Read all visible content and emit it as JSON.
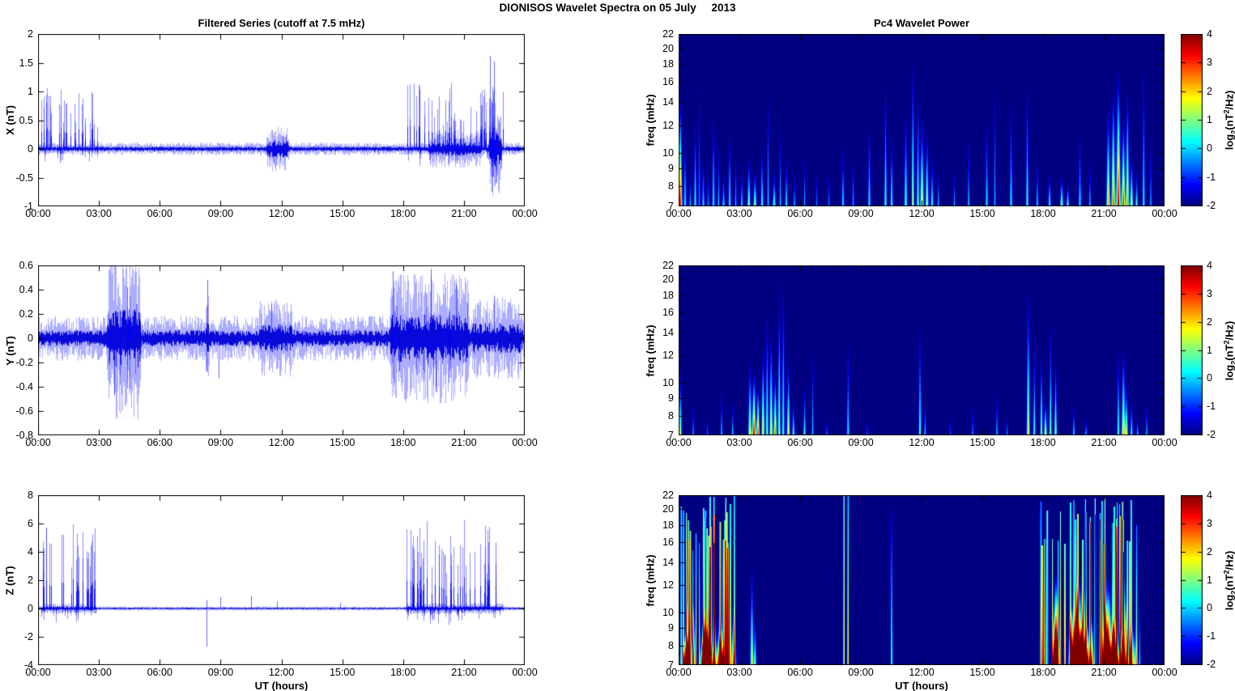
{
  "header": {
    "title": "DIONISOS Wavelet Spectra on 05 July     2013"
  },
  "axes": {
    "x_label": "UT (hours)",
    "x_tick_hours": [
      0,
      3,
      6,
      9,
      12,
      15,
      18,
      21,
      24
    ],
    "x_tick_labels": [
      "00:00",
      "03:00",
      "06:00",
      "09:00",
      "12:00",
      "15:00",
      "18:00",
      "21:00",
      "00:00"
    ]
  },
  "colorbar": {
    "range": [
      -2,
      4
    ],
    "tick_values": [
      4,
      3,
      2,
      1,
      0,
      -1,
      -2
    ],
    "tick_labels": [
      "4",
      "3",
      "2",
      "1",
      "0",
      "-1",
      "-2"
    ],
    "label_parts": {
      "prefix": "log",
      "sub": "2",
      "mid": "(nT",
      "sup": "2",
      "suffix": "/Hz)"
    },
    "colormap": "jet"
  },
  "chart_data": [
    {
      "id": "x-series",
      "panel": "x-series",
      "type": "line",
      "title": "Filtered Series (cutoff at 7.5 mHz)",
      "ylabel": "X (nT)",
      "ylim": [
        -1,
        2
      ],
      "ytick_values": [
        2,
        1.5,
        1,
        0.5,
        0,
        -0.5,
        -1
      ],
      "ytick_labels": [
        "2",
        "1.5",
        "1",
        "0.5",
        "0",
        "-0.5",
        "-1"
      ],
      "line_color": "#0000ff",
      "signal": {
        "seed": 11,
        "noise": 0.05,
        "bursts": [
          {
            "t0": 11.2,
            "t1": 12.4,
            "amp": 0.13
          },
          {
            "t0": 19.2,
            "t1": 21.9,
            "amp": 0.1
          },
          {
            "t0": 22.15,
            "t1": 22.9,
            "amp": 0.35
          }
        ],
        "spike_trains": [
          {
            "t0": 0.1,
            "t1": 2.95,
            "rate": 11,
            "amp": [
              0.35,
              1.08
            ],
            "sign": 1
          },
          {
            "t0": 0.1,
            "t1": 2.95,
            "rate": 4,
            "amp": [
              0.1,
              0.25
            ],
            "sign": -1
          },
          {
            "t0": 11.3,
            "t1": 12.3,
            "rate": 6,
            "amp": [
              0.15,
              0.35
            ],
            "sign": 0
          },
          {
            "t0": 18.1,
            "t1": 23.0,
            "rate": 10,
            "amp": [
              0.4,
              1.15
            ],
            "sign": 1
          },
          {
            "t0": 18.1,
            "t1": 23.0,
            "rate": 4,
            "amp": [
              0.1,
              0.3
            ],
            "sign": -1
          },
          {
            "t0": 22.2,
            "t1": 22.9,
            "rate": 9,
            "amp": [
              0.3,
              0.72
            ],
            "sign": -1
          }
        ],
        "events": [
          {
            "t": 22.28,
            "a": 1.62
          },
          {
            "t": 22.47,
            "a": 1.52
          },
          {
            "t": 22.38,
            "a": -0.75
          }
        ]
      }
    },
    {
      "id": "y-series",
      "panel": "y-series",
      "type": "line",
      "title": "",
      "ylabel": "Y (nT)",
      "ylim": [
        -0.8,
        0.6
      ],
      "ytick_values": [
        0.6,
        0.4,
        0.2,
        0,
        -0.2,
        -0.4,
        -0.6,
        -0.8
      ],
      "ytick_labels": [
        "0.6",
        "0.4",
        "0.2",
        "0",
        "-0.2",
        "-0.4",
        "-0.6",
        "-0.8"
      ],
      "line_color": "#0000ff",
      "signal": {
        "seed": 22,
        "noise": 0.085,
        "bursts": [
          {
            "t0": 3.35,
            "t1": 5.1,
            "amp": 0.22
          },
          {
            "t0": 8.2,
            "t1": 8.5,
            "amp": 0.1
          },
          {
            "t0": 10.8,
            "t1": 12.6,
            "amp": 0.06
          },
          {
            "t0": 17.3,
            "t1": 21.3,
            "amp": 0.16
          },
          {
            "t0": 21.3,
            "t1": 23.9,
            "amp": 0.07
          }
        ],
        "spike_trains": [
          {
            "t0": 3.4,
            "t1": 5.0,
            "rate": 12,
            "amp": [
              0.15,
              0.42
            ],
            "sign": 0
          },
          {
            "t0": 17.4,
            "t1": 21.2,
            "rate": 8,
            "amp": [
              0.15,
              0.4
            ],
            "sign": 0
          }
        ],
        "events": [
          {
            "t": 3.75,
            "a": -0.47
          },
          {
            "t": 4.4,
            "a": 0.42
          },
          {
            "t": 8.35,
            "a": 0.48
          },
          {
            "t": 8.3,
            "a": -0.28
          },
          {
            "t": 8.9,
            "a": -0.33
          },
          {
            "t": 11.5,
            "a": 0.28
          },
          {
            "t": 17.5,
            "a": 0.55
          },
          {
            "t": 19.35,
            "a": 0.57
          },
          {
            "t": 19.6,
            "a": -0.44
          },
          {
            "t": 20.6,
            "a": 0.45
          },
          {
            "t": 22.5,
            "a": 0.35
          }
        ]
      }
    },
    {
      "id": "z-series",
      "panel": "z-series",
      "type": "line",
      "title": "",
      "ylabel": "Z (nT)",
      "ylim": [
        -4,
        8
      ],
      "ytick_values": [
        8,
        6,
        4,
        2,
        0,
        -2,
        -4
      ],
      "ytick_labels": [
        "8",
        "6",
        "4",
        "2",
        "0",
        "-2",
        "-4"
      ],
      "line_color": "#0000ff",
      "signal": {
        "seed": 33,
        "noise": 0.07,
        "bursts": [
          {
            "t0": 0.1,
            "t1": 2.9,
            "amp": 0.1
          },
          {
            "t0": 18.05,
            "t1": 23.0,
            "amp": 0.12
          }
        ],
        "spike_trains": [
          {
            "t0": 0.12,
            "t1": 2.85,
            "rate": 10,
            "amp": [
              2.5,
              6.1
            ],
            "sign": 1
          },
          {
            "t0": 0.12,
            "t1": 2.85,
            "rate": 6,
            "amp": [
              0.3,
              1.0
            ],
            "sign": -1
          },
          {
            "t0": 18.1,
            "t1": 22.95,
            "rate": 10,
            "amp": [
              2.5,
              6.3
            ],
            "sign": 1
          },
          {
            "t0": 18.1,
            "t1": 22.95,
            "rate": 6,
            "amp": [
              0.3,
              1.2
            ],
            "sign": -1
          }
        ],
        "events": [
          {
            "t": 8.3,
            "a": -2.7
          },
          {
            "t": 8.32,
            "a": 0.6
          },
          {
            "t": 9.0,
            "a": 0.8
          },
          {
            "t": 10.5,
            "a": 0.9
          },
          {
            "t": 11.8,
            "a": 0.5
          },
          {
            "t": 14.9,
            "a": 0.4
          }
        ]
      }
    },
    {
      "id": "x-wavelet",
      "panel": "x-wavelet",
      "type": "heatmap",
      "title": "Pc4 Wavelet Power",
      "ylabel": "freq (mHz)",
      "f_range": [
        7,
        22
      ],
      "ytick_values": [
        22,
        20,
        18,
        16,
        14,
        12,
        10,
        9,
        8,
        7
      ],
      "ytick_labels": [
        "22",
        "20",
        "18",
        "16",
        "14",
        "12",
        "10",
        "9",
        "8",
        "7"
      ],
      "power_range": [
        -2,
        4
      ],
      "background_power": -2,
      "streak_fields": [
        "t_hours",
        "width_hours",
        "f_top_mHz",
        "peak_log2_power",
        "top_log2_power_optional"
      ],
      "streaks": [
        [
          0.06,
          0.06,
          15,
          3.6
        ],
        [
          0.3,
          0.04,
          12,
          0.6
        ],
        [
          0.55,
          0.03,
          9,
          0.2
        ],
        [
          0.8,
          0.04,
          13,
          0.8
        ],
        [
          1.0,
          0.03,
          18,
          -0.2
        ],
        [
          1.2,
          0.04,
          10,
          0.4
        ],
        [
          1.45,
          0.03,
          9,
          0.0
        ],
        [
          1.7,
          0.04,
          14,
          0.6
        ],
        [
          1.95,
          0.03,
          11,
          0.3
        ],
        [
          2.2,
          0.04,
          9,
          0.5
        ],
        [
          2.5,
          0.04,
          12,
          0.7
        ],
        [
          2.8,
          0.03,
          10,
          0.2
        ],
        [
          3.1,
          0.04,
          9,
          0.4
        ],
        [
          3.45,
          0.05,
          10,
          1.3
        ],
        [
          3.75,
          0.05,
          9,
          1.6
        ],
        [
          4.1,
          0.04,
          11,
          0.9
        ],
        [
          4.4,
          0.03,
          16,
          0.4
        ],
        [
          4.7,
          0.05,
          9,
          1.0
        ],
        [
          5.0,
          0.03,
          12,
          0.3
        ],
        [
          5.3,
          0.04,
          10,
          0.6
        ],
        [
          5.7,
          0.03,
          9,
          0.2
        ],
        [
          6.2,
          0.03,
          10,
          0.1
        ],
        [
          6.8,
          0.03,
          9,
          -0.3
        ],
        [
          7.4,
          0.03,
          9,
          -0.2
        ],
        [
          8.1,
          0.04,
          11,
          0.4
        ],
        [
          8.6,
          0.03,
          10,
          0.1
        ],
        [
          9.4,
          0.04,
          13,
          0.6
        ],
        [
          10.2,
          0.04,
          17,
          1.0
        ],
        [
          10.5,
          0.04,
          12,
          0.8
        ],
        [
          11.2,
          0.05,
          14,
          1.0
        ],
        [
          11.55,
          0.04,
          20,
          1.8
        ],
        [
          11.8,
          0.04,
          16,
          1.2
        ],
        [
          12.0,
          0.06,
          13,
          2.1
        ],
        [
          12.25,
          0.05,
          12,
          1.6
        ],
        [
          12.5,
          0.04,
          10,
          0.9
        ],
        [
          12.8,
          0.03,
          9,
          0.3
        ],
        [
          13.6,
          0.03,
          9,
          0.1
        ],
        [
          14.3,
          0.03,
          12,
          0.3
        ],
        [
          15.2,
          0.04,
          13,
          0.6
        ],
        [
          15.6,
          0.03,
          17,
          0.2
        ],
        [
          16.4,
          0.04,
          15,
          0.6
        ],
        [
          17.2,
          0.04,
          17,
          0.9
        ],
        [
          17.7,
          0.03,
          10,
          0.5
        ],
        [
          18.3,
          0.04,
          9,
          0.8
        ],
        [
          18.9,
          0.05,
          8.7,
          1.5
        ],
        [
          19.2,
          0.04,
          8.2,
          1.2
        ],
        [
          19.8,
          0.04,
          12,
          0.5
        ],
        [
          20.3,
          0.03,
          10,
          0.2
        ],
        [
          21.2,
          0.06,
          14,
          2.4
        ],
        [
          21.45,
          0.06,
          16,
          3.1
        ],
        [
          21.7,
          0.07,
          18,
          3.9
        ],
        [
          21.95,
          0.06,
          13,
          3.4
        ],
        [
          22.15,
          0.05,
          16,
          2.7
        ],
        [
          22.35,
          0.05,
          10,
          1.9
        ],
        [
          22.6,
          0.04,
          9,
          1.0
        ],
        [
          22.95,
          0.04,
          20,
          0.6
        ],
        [
          23.3,
          0.03,
          12,
          0.0
        ]
      ],
      "clusters": []
    },
    {
      "id": "y-wavelet",
      "panel": "y-wavelet",
      "type": "heatmap",
      "title": "",
      "ylabel": "freq (mHz)",
      "f_range": [
        7,
        22
      ],
      "ytick_values": [
        22,
        20,
        18,
        16,
        14,
        12,
        10,
        9,
        8,
        7
      ],
      "ytick_labels": [
        "22",
        "20",
        "18",
        "16",
        "14",
        "12",
        "10",
        "9",
        "8",
        "7"
      ],
      "power_range": [
        -2,
        4
      ],
      "background_power": -2,
      "streak_fields": [
        "t_hours",
        "width_hours",
        "f_top_mHz",
        "peak_log2_power",
        "top_log2_power_optional"
      ],
      "streaks": [
        [
          0.06,
          0.05,
          11,
          1.6
        ],
        [
          0.7,
          0.03,
          9,
          0.0
        ],
        [
          1.4,
          0.03,
          8,
          -0.4
        ],
        [
          2.1,
          0.03,
          10,
          0.2
        ],
        [
          2.65,
          0.03,
          9,
          0.4
        ],
        [
          3.5,
          0.05,
          12,
          2.1
        ],
        [
          3.7,
          0.06,
          11,
          3.8
        ],
        [
          3.9,
          0.05,
          10,
          3.3
        ],
        [
          4.15,
          0.05,
          13,
          2.4
        ],
        [
          4.35,
          0.04,
          17,
          1.4
        ],
        [
          4.55,
          0.05,
          15,
          2.2
        ],
        [
          4.75,
          0.05,
          11,
          3.0
        ],
        [
          4.95,
          0.04,
          20,
          1.7
        ],
        [
          5.15,
          0.04,
          22,
          1.0
        ],
        [
          5.4,
          0.05,
          12,
          2.0
        ],
        [
          5.65,
          0.04,
          9,
          1.1
        ],
        [
          6.2,
          0.04,
          10,
          0.8
        ],
        [
          6.6,
          0.03,
          13,
          0.3
        ],
        [
          7.3,
          0.03,
          8,
          -0.3
        ],
        [
          8.35,
          0.04,
          14,
          0.5
        ],
        [
          9.3,
          0.03,
          8,
          -0.5
        ],
        [
          11.9,
          0.04,
          16,
          1.0
        ],
        [
          12.15,
          0.03,
          9,
          0.4
        ],
        [
          13.4,
          0.03,
          8,
          -0.6
        ],
        [
          14.5,
          0.03,
          9,
          -0.2
        ],
        [
          15.7,
          0.03,
          10,
          0.2
        ],
        [
          16.2,
          0.03,
          8,
          0.0
        ],
        [
          17.25,
          0.05,
          20,
          1.9
        ],
        [
          17.55,
          0.04,
          14,
          0.8
        ],
        [
          17.9,
          0.04,
          13,
          1.4
        ],
        [
          18.1,
          0.05,
          9,
          2.0
        ],
        [
          18.35,
          0.04,
          16,
          1.2
        ],
        [
          18.6,
          0.04,
          12,
          1.7
        ],
        [
          19.5,
          0.03,
          9,
          0.5
        ],
        [
          20.1,
          0.03,
          8,
          0.2
        ],
        [
          21.7,
          0.04,
          13,
          1.0
        ],
        [
          21.95,
          0.06,
          13,
          2.3
        ],
        [
          22.1,
          0.05,
          10,
          1.8
        ],
        [
          22.35,
          0.04,
          9,
          0.8
        ],
        [
          22.65,
          0.03,
          8,
          0.4
        ],
        [
          23.1,
          0.03,
          9,
          0.3
        ]
      ],
      "clusters": []
    },
    {
      "id": "z-wavelet",
      "panel": "z-wavelet",
      "type": "heatmap",
      "title": "",
      "ylabel": "freq (mHz)",
      "f_range": [
        7,
        22
      ],
      "ytick_values": [
        22,
        20,
        18,
        16,
        14,
        12,
        10,
        9,
        8,
        7
      ],
      "ytick_labels": [
        "22",
        "20",
        "18",
        "16",
        "14",
        "12",
        "10",
        "9",
        "8",
        "7"
      ],
      "power_range": [
        -2,
        4
      ],
      "background_power": -2,
      "streak_fields": [
        "t_hours",
        "width_hours",
        "f_top_mHz",
        "peak_log2_power",
        "top_log2_power_optional"
      ],
      "streaks": [
        [
          3.6,
          0.05,
          14,
          2.2
        ],
        [
          3.75,
          0.04,
          10,
          1.4
        ],
        [
          8.15,
          0.025,
          22,
          2.0,
          1.0
        ],
        [
          8.35,
          0.025,
          22,
          2.2,
          0.3
        ],
        [
          10.5,
          0.03,
          20,
          1.0,
          -1.5
        ],
        [
          22.6,
          0.03,
          18,
          1.5,
          -0.5
        ],
        [
          22.75,
          0.02,
          12,
          0.8
        ]
      ],
      "clusters": [
        {
          "t0": 0.05,
          "t1": 2.75,
          "n": 30,
          "w": [
            0.015,
            0.03
          ],
          "ftop": [
            15,
            22
          ],
          "p": [
            1.8,
            3.8
          ],
          "pt_drop": [
            0.8,
            2.5
          ],
          "seed": 7
        },
        {
          "t0": 0.15,
          "t1": 2.7,
          "n": 14,
          "w": [
            0.06,
            0.13
          ],
          "ftop": [
            8.5,
            11
          ],
          "p": [
            2.2,
            3.4
          ],
          "pt_drop": null,
          "seed": 8
        },
        {
          "t0": 17.85,
          "t1": 22.45,
          "n": 40,
          "w": [
            0.015,
            0.03
          ],
          "ftop": [
            15,
            22
          ],
          "p": [
            2.0,
            3.9
          ],
          "pt_drop": [
            0.8,
            2.5
          ],
          "seed": 9
        },
        {
          "t0": 17.9,
          "t1": 22.4,
          "n": 22,
          "w": [
            0.06,
            0.15
          ],
          "ftop": [
            9,
            13.5
          ],
          "p": [
            2.4,
            3.6
          ],
          "pt_drop": null,
          "seed": 10
        }
      ]
    }
  ]
}
